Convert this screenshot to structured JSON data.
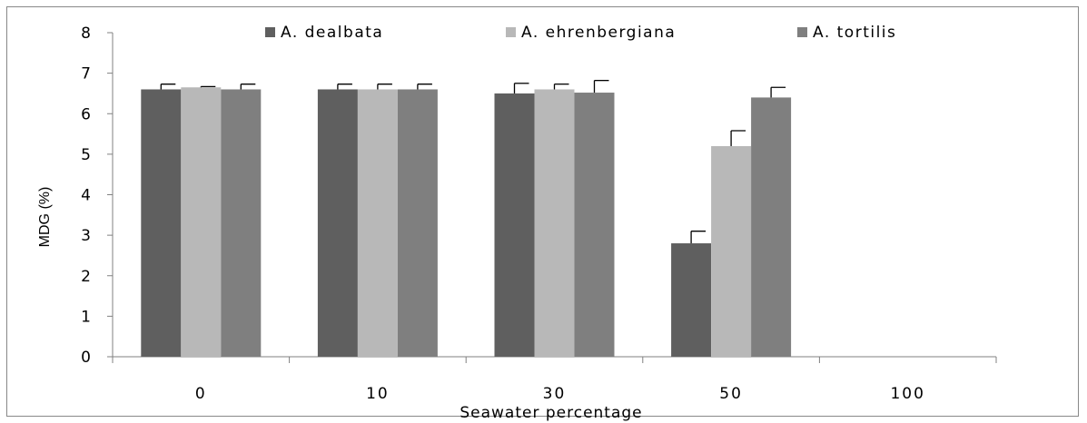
{
  "chart_data": {
    "type": "bar",
    "categories": [
      "0",
      "10",
      "30",
      "50",
      "100"
    ],
    "series": [
      {
        "name": "A. dealbata",
        "color": "#5f5f5f",
        "values": [
          6.6,
          6.6,
          6.5,
          2.8,
          0
        ],
        "errors": [
          0.13,
          0.13,
          0.25,
          0.3,
          0
        ]
      },
      {
        "name": "A. ehrenbergiana",
        "color": "#b8b8b8",
        "values": [
          6.65,
          6.6,
          6.6,
          5.2,
          0
        ],
        "errors": [
          0.02,
          0.13,
          0.13,
          0.38,
          0
        ]
      },
      {
        "name": "A. tortilis",
        "color": "#7f7f7f",
        "values": [
          6.6,
          6.6,
          6.52,
          6.4,
          0
        ],
        "errors": [
          0.13,
          0.13,
          0.3,
          0.25,
          0
        ]
      }
    ],
    "y_ticks": [
      "0",
      "1",
      "2",
      "3",
      "4",
      "5",
      "6",
      "7",
      "8"
    ],
    "ylim": [
      0,
      8
    ],
    "xlabel": "Seawater percentage",
    "ylabel": "MDG (%)",
    "legend_position": "top",
    "grid": false
  }
}
